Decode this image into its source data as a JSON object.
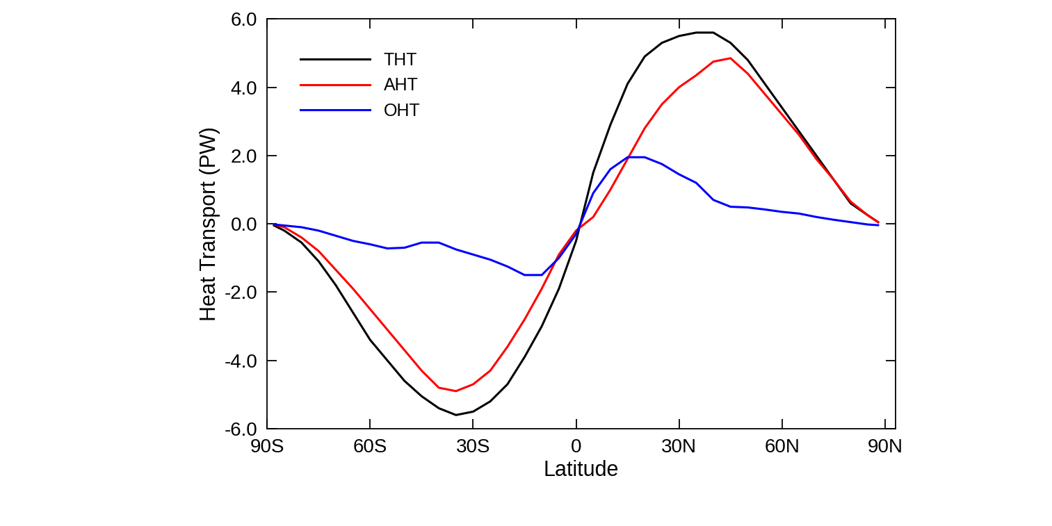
{
  "chart_data": {
    "type": "line",
    "x_label": "Latitude",
    "y_label": "Heat Transport (PW)",
    "x": [
      -88,
      -85,
      -80,
      -75,
      -70,
      -65,
      -60,
      -55,
      -50,
      -45,
      -40,
      -35,
      -30,
      -25,
      -20,
      -15,
      -10,
      -5,
      0,
      5,
      10,
      15,
      20,
      25,
      30,
      35,
      40,
      45,
      50,
      55,
      60,
      65,
      70,
      75,
      80,
      85,
      88
    ],
    "series": [
      {
        "name": "THT",
        "color": "#000000",
        "values": [
          -0.05,
          -0.2,
          -0.55,
          -1.1,
          -1.8,
          -2.6,
          -3.4,
          -4.0,
          -4.6,
          -5.05,
          -5.4,
          -5.6,
          -5.5,
          -5.2,
          -4.7,
          -3.9,
          -3.0,
          -1.9,
          -0.5,
          1.5,
          2.9,
          4.1,
          4.9,
          5.3,
          5.5,
          5.6,
          5.6,
          5.3,
          4.8,
          4.1,
          3.4,
          2.7,
          2.0,
          1.3,
          0.6,
          0.25,
          0.05
        ]
      },
      {
        "name": "AHT",
        "color": "#ff0000",
        "values": [
          -0.02,
          -0.1,
          -0.4,
          -0.8,
          -1.35,
          -1.9,
          -2.5,
          -3.1,
          -3.7,
          -4.3,
          -4.8,
          -4.9,
          -4.7,
          -4.3,
          -3.6,
          -2.8,
          -1.9,
          -0.9,
          -0.2,
          0.2,
          1.0,
          1.9,
          2.8,
          3.5,
          4.0,
          4.35,
          4.75,
          4.85,
          4.4,
          3.8,
          3.2,
          2.6,
          1.9,
          1.3,
          0.65,
          0.25,
          0.05
        ]
      },
      {
        "name": "OHT",
        "color": "#0000ff",
        "values": [
          -0.02,
          -0.05,
          -0.1,
          -0.2,
          -0.35,
          -0.5,
          -0.6,
          -0.72,
          -0.7,
          -0.55,
          -0.55,
          -0.75,
          -0.9,
          -1.05,
          -1.25,
          -1.5,
          -1.5,
          -1.0,
          -0.3,
          0.9,
          1.6,
          1.95,
          1.95,
          1.75,
          1.45,
          1.2,
          0.7,
          0.5,
          0.48,
          0.42,
          0.35,
          0.3,
          0.2,
          0.12,
          0.05,
          -0.02,
          -0.04
        ]
      }
    ],
    "xlim": [
      -90,
      93
    ],
    "ylim": [
      -6,
      6
    ],
    "xticks": [
      {
        "value": -90,
        "label": "90S"
      },
      {
        "value": -60,
        "label": "60S"
      },
      {
        "value": -30,
        "label": "30S"
      },
      0,
      {
        "value": 30,
        "label": "30N"
      },
      {
        "value": 60,
        "label": "60N"
      },
      {
        "value": 90,
        "label": "90N"
      }
    ],
    "yticks": [
      {
        "value": -6,
        "label": "-6.0"
      },
      {
        "value": -4,
        "label": "-4.0"
      },
      {
        "value": -2,
        "label": "-2.0"
      },
      {
        "value": 0,
        "label": "0.0"
      },
      {
        "value": 2,
        "label": "2.0"
      },
      {
        "value": 4,
        "label": "4.0"
      },
      {
        "value": 6,
        "label": "6.0"
      }
    ],
    "legend": "upper left",
    "grid": false
  }
}
